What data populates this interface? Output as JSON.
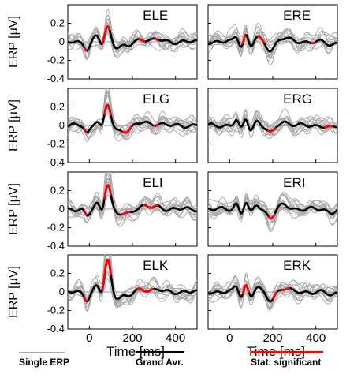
{
  "chart_data": {
    "type": "line",
    "panels": [
      {
        "id": "ELE",
        "label": "ELE",
        "significant": [
          [
            -25,
            -10
          ],
          [
            60,
            95
          ],
          [
            230,
            260
          ],
          [
            300,
            320
          ]
        ]
      },
      {
        "id": "ERE",
        "label": "ERE",
        "significant": [
          [
            60,
            75
          ],
          [
            130,
            160
          ],
          [
            380,
            400
          ]
        ]
      },
      {
        "id": "ELG",
        "label": "ELG",
        "significant": [
          [
            -25,
            -10
          ],
          [
            70,
            100
          ],
          [
            150,
            200
          ],
          [
            300,
            320
          ]
        ]
      },
      {
        "id": "ERG",
        "label": "ERG",
        "significant": [
          [
            175,
            215
          ],
          [
            440,
            480
          ]
        ]
      },
      {
        "id": "ELI",
        "label": "ELI",
        "significant": [
          [
            -25,
            -10
          ],
          [
            70,
            100
          ],
          [
            150,
            190
          ],
          [
            250,
            320
          ]
        ]
      },
      {
        "id": "ERI",
        "label": "ERI",
        "significant": [
          [
            180,
            210
          ]
        ]
      },
      {
        "id": "ELK",
        "label": "ELK",
        "significant": [
          [
            -25,
            -10
          ],
          [
            60,
            100
          ],
          [
            220,
            300
          ]
        ]
      },
      {
        "id": "ERK",
        "label": "ERK",
        "significant": [
          [
            60,
            90
          ],
          [
            200,
            220
          ],
          [
            240,
            280
          ]
        ]
      }
    ],
    "x_range": [
      -100,
      500
    ],
    "y_range": [
      -0.4,
      0.4
    ],
    "x_ticks": [
      0,
      200,
      400
    ],
    "y_ticks": [
      -0.4,
      -0.2,
      0,
      0.2
    ],
    "y_tick_labels": [
      "-0.4",
      "-0.2",
      "0",
      "0.2"
    ],
    "x_tick_labels": [
      "0",
      "200",
      "400"
    ],
    "xlabel": "Time [ms]",
    "ylabel": "ERP  [μV]",
    "legend": [
      {
        "label": "Single ERP",
        "color": "#a8a8a8"
      },
      {
        "label": "Grand Avr.",
        "color": "#000000"
      },
      {
        "label": "Stat. significant",
        "color": "#ff0000"
      }
    ]
  }
}
